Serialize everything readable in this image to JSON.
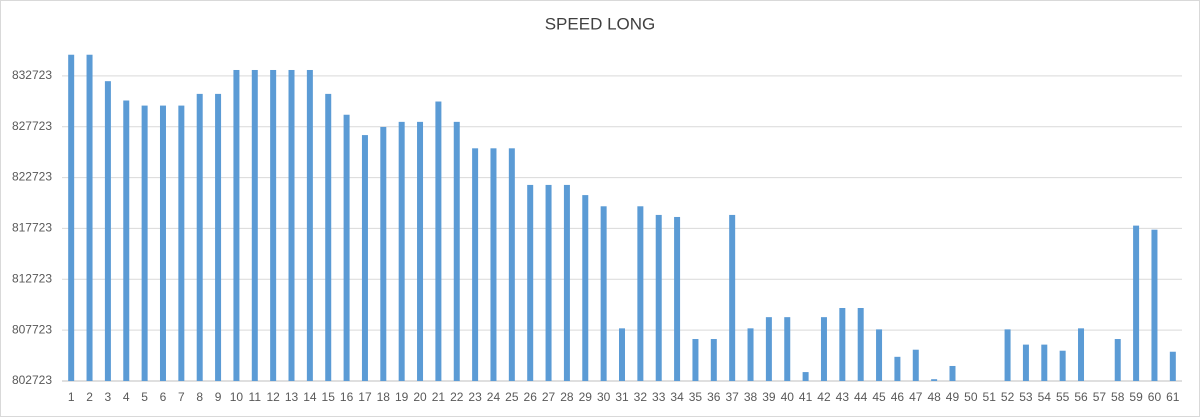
{
  "chart_data": {
    "type": "bar",
    "title": "SPEED LONG",
    "categories": [
      "1",
      "2",
      "3",
      "4",
      "5",
      "6",
      "7",
      "8",
      "9",
      "10",
      "11",
      "12",
      "13",
      "14",
      "15",
      "16",
      "17",
      "18",
      "19",
      "20",
      "21",
      "22",
      "23",
      "24",
      "25",
      "26",
      "27",
      "28",
      "29",
      "30",
      "31",
      "32",
      "33",
      "34",
      "35",
      "36",
      "37",
      "38",
      "39",
      "40",
      "41",
      "42",
      "43",
      "44",
      "45",
      "46",
      "47",
      "48",
      "49",
      "50",
      "51",
      "52",
      "53",
      "54",
      "55",
      "56",
      "57",
      "58",
      "59",
      "60",
      "61"
    ],
    "values": [
      834800,
      834800,
      832200,
      830300,
      829800,
      829800,
      829800,
      830950,
      830950,
      833300,
      833300,
      833300,
      833300,
      833300,
      830950,
      828900,
      826900,
      827700,
      828200,
      828200,
      830200,
      828200,
      825600,
      825600,
      825600,
      822000,
      822000,
      822000,
      821000,
      819900,
      807900,
      819900,
      819050,
      818850,
      806850,
      806850,
      819050,
      807900,
      809000,
      809000,
      803600,
      809000,
      809900,
      809900,
      807800,
      805100,
      805800,
      802900,
      804200,
      null,
      null,
      807800,
      806300,
      806300,
      805700,
      807900,
      null,
      806850,
      818000,
      817600,
      805600
    ],
    "color": "#5b9bd5",
    "ylim": [
      802723,
      837723
    ],
    "yticks": [
      802723,
      807723,
      812723,
      817723,
      822723,
      827723,
      832723
    ],
    "grid": true
  }
}
